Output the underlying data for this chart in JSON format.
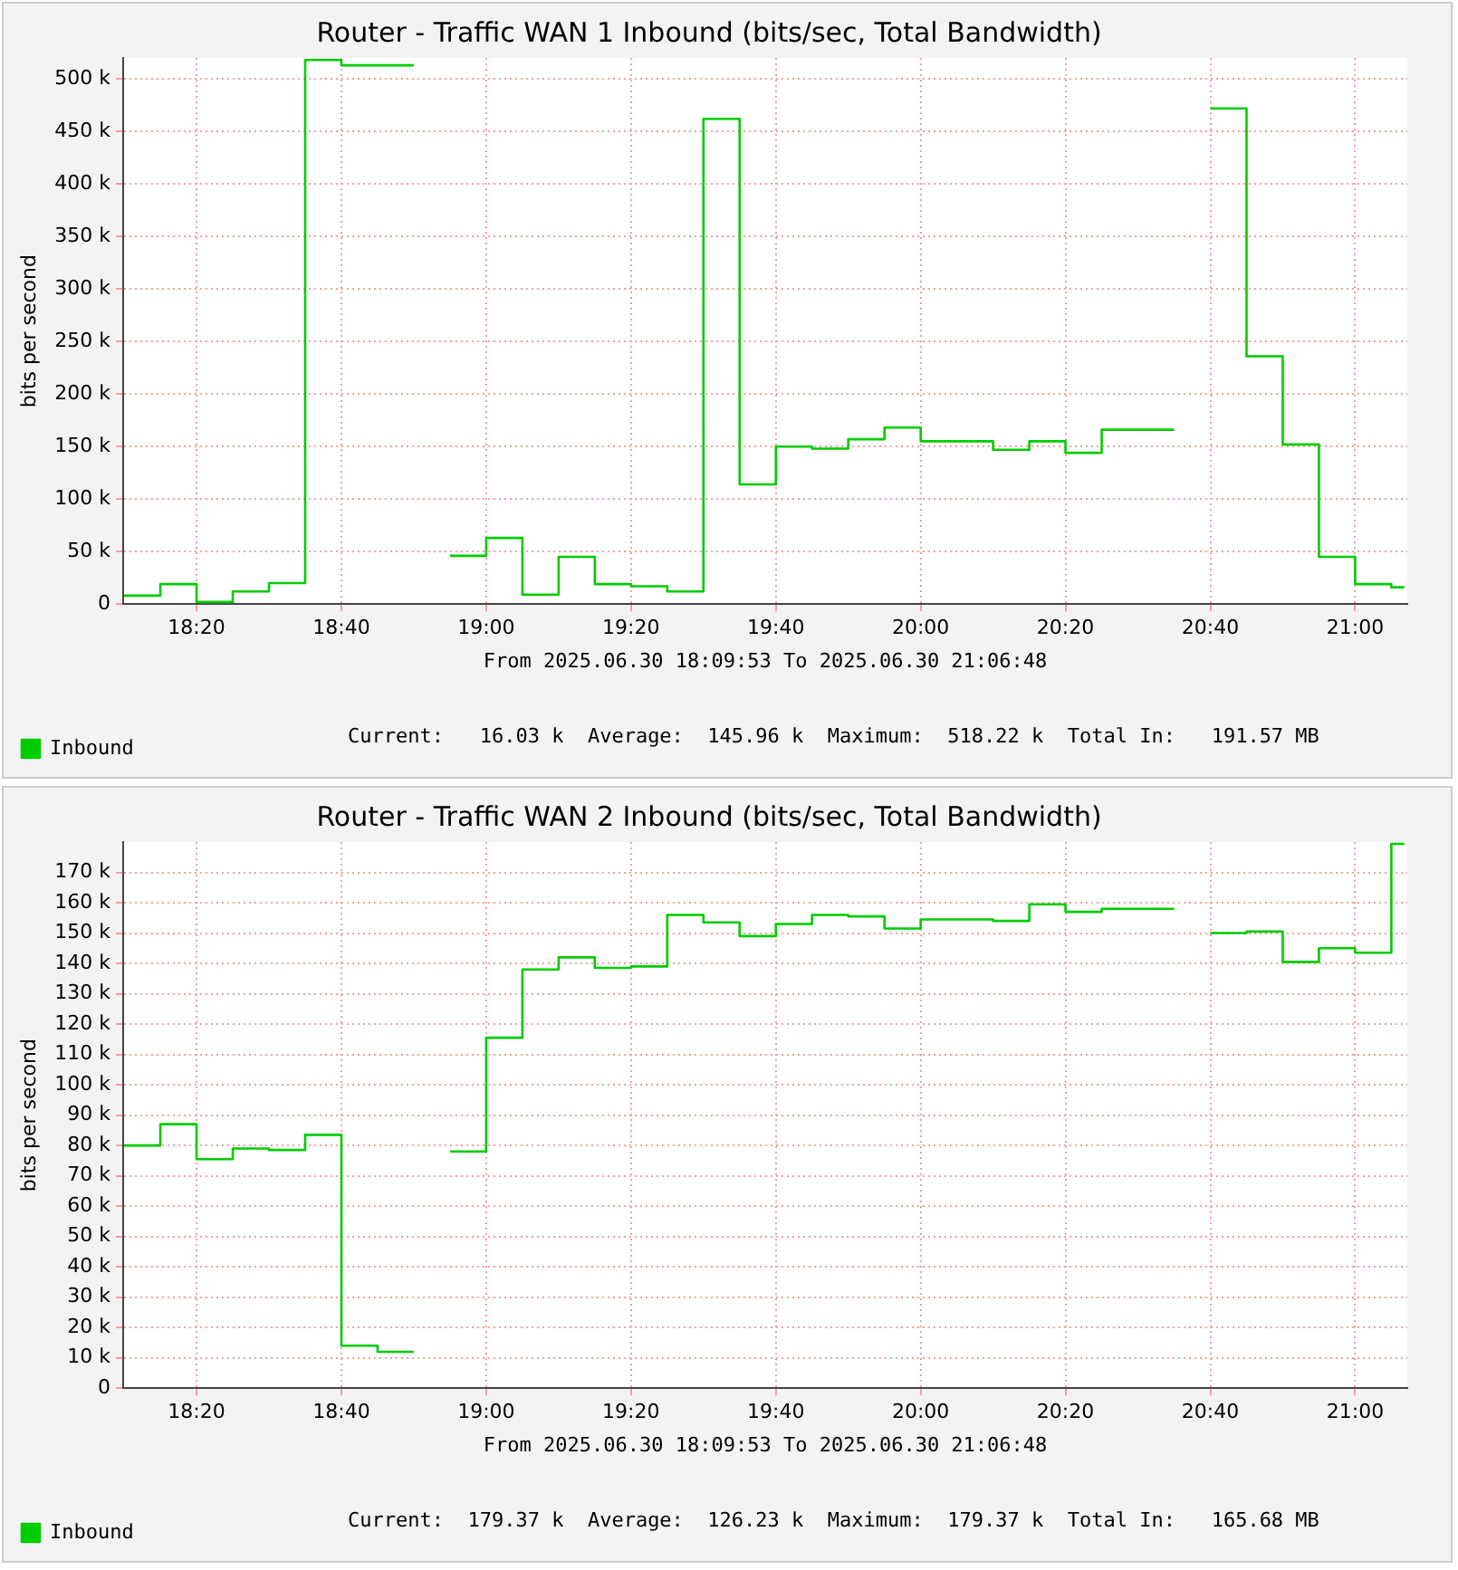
{
  "chart_data": [
    {
      "type": "step",
      "title": "Router - Traffic WAN 1 Inbound (bits/sec, Total Bandwidth)",
      "xlabel": "From 2025.06.30 18:09:53 To 2025.06.30 21:06:48",
      "ylabel": "bits per second",
      "x": [
        18.1667,
        18.25,
        18.3333,
        18.4167,
        18.5,
        18.5833,
        18.6667,
        18.75,
        18.8333,
        18.875,
        18.9167,
        19.0,
        19.0833,
        19.1667,
        19.25,
        19.3333,
        19.4167,
        19.5,
        19.5833,
        19.6667,
        19.75,
        19.8333,
        19.9167,
        20.0,
        20.0833,
        20.1667,
        20.25,
        20.3333,
        20.4167,
        20.5,
        20.5833,
        20.625,
        20.6667,
        20.75,
        20.8333,
        20.9167,
        21.0,
        21.0833,
        21.1133
      ],
      "series": [
        {
          "name": "Inbound",
          "color": "#00cc00",
          "values": [
            8,
            19,
            2,
            12,
            20,
            518,
            513,
            513,
            513,
            null,
            46,
            63,
            9,
            45,
            19,
            17,
            12,
            462,
            114,
            150,
            148,
            157,
            168,
            155,
            155,
            147,
            155,
            144,
            166,
            166,
            166,
            null,
            472,
            236,
            152,
            45,
            19,
            16,
            16
          ]
        }
      ],
      "xlim": [
        18.1647,
        21.12
      ],
      "xticks": [
        {
          "value": 18.3333,
          "label": "18:20"
        },
        {
          "value": 18.6667,
          "label": "18:40"
        },
        {
          "value": 19.0,
          "label": "19:00"
        },
        {
          "value": 19.3333,
          "label": "19:20"
        },
        {
          "value": 19.6667,
          "label": "19:40"
        },
        {
          "value": 20.0,
          "label": "20:00"
        },
        {
          "value": 20.3333,
          "label": "20:20"
        },
        {
          "value": 20.6667,
          "label": "20:40"
        },
        {
          "value": 21.0,
          "label": "21:00"
        }
      ],
      "ylim": [
        0,
        520
      ],
      "yticks": [
        0,
        {
          "value": 50,
          "label": "50 k"
        },
        {
          "value": 100,
          "label": "100 k"
        },
        {
          "value": 150,
          "label": "150 k"
        },
        {
          "value": 200,
          "label": "200 k"
        },
        {
          "value": 250,
          "label": "250 k"
        },
        {
          "value": 300,
          "label": "300 k"
        },
        {
          "value": 350,
          "label": "350 k"
        },
        {
          "value": 400,
          "label": "400 k"
        },
        {
          "value": 450,
          "label": "450 k"
        },
        {
          "value": 500,
          "label": "500 k"
        }
      ],
      "grid": true,
      "legend": "bottom left",
      "marker": "none",
      "annotations": [
        "Current:   16.03 k  Average:  145.96 k  Maximum:  518.22 k  Total In:   191.57 MB"
      ]
    },
    {
      "type": "step",
      "title": "Router - Traffic WAN 2 Inbound (bits/sec, Total Bandwidth)",
      "xlabel": "From 2025.06.30 18:09:53 To 2025.06.30 21:06:48",
      "ylabel": "bits per second",
      "x": [
        18.1667,
        18.25,
        18.3333,
        18.4167,
        18.5,
        18.5833,
        18.6667,
        18.75,
        18.8333,
        18.875,
        18.9167,
        19.0,
        19.0833,
        19.1667,
        19.25,
        19.3333,
        19.4167,
        19.5,
        19.5833,
        19.6667,
        19.75,
        19.8333,
        19.9167,
        20.0,
        20.0833,
        20.1667,
        20.25,
        20.3333,
        20.4167,
        20.5,
        20.5833,
        20.625,
        20.6667,
        20.75,
        20.8333,
        20.9167,
        21.0,
        21.0833,
        21.1133
      ],
      "series": [
        {
          "name": "Inbound",
          "color": "#00cc00",
          "values": [
            80,
            87,
            75.5,
            79,
            78.5,
            83.5,
            14,
            12,
            12,
            null,
            78,
            115.5,
            138,
            142,
            138.5,
            139,
            156,
            153.5,
            149,
            153,
            156,
            155.5,
            151.5,
            154.5,
            154.5,
            154,
            159.5,
            157,
            158,
            158,
            158,
            null,
            150,
            150.5,
            140.5,
            145,
            143.5,
            179.4,
            179.4
          ]
        }
      ],
      "xlim": [
        18.1647,
        21.12
      ],
      "xticks": [
        {
          "value": 18.3333,
          "label": "18:20"
        },
        {
          "value": 18.6667,
          "label": "18:40"
        },
        {
          "value": 19.0,
          "label": "19:00"
        },
        {
          "value": 19.3333,
          "label": "19:20"
        },
        {
          "value": 19.6667,
          "label": "19:40"
        },
        {
          "value": 20.0,
          "label": "20:00"
        },
        {
          "value": 20.3333,
          "label": "20:20"
        },
        {
          "value": 20.6667,
          "label": "20:40"
        },
        {
          "value": 21.0,
          "label": "21:00"
        }
      ],
      "ylim": [
        0,
        180
      ],
      "yticks": [
        0,
        {
          "value": 10,
          "label": "10 k"
        },
        {
          "value": 20,
          "label": "20 k"
        },
        {
          "value": 30,
          "label": "30 k"
        },
        {
          "value": 40,
          "label": "40 k"
        },
        {
          "value": 50,
          "label": "50 k"
        },
        {
          "value": 60,
          "label": "60 k"
        },
        {
          "value": 70,
          "label": "70 k"
        },
        {
          "value": 80,
          "label": "80 k"
        },
        {
          "value": 90,
          "label": "90 k"
        },
        {
          "value": 100,
          "label": "100 k"
        },
        {
          "value": 110,
          "label": "110 k"
        },
        {
          "value": 120,
          "label": "120 k"
        },
        {
          "value": 130,
          "label": "130 k"
        },
        {
          "value": 140,
          "label": "140 k"
        },
        {
          "value": 150,
          "label": "150 k"
        },
        {
          "value": 160,
          "label": "160 k"
        },
        {
          "value": 170,
          "label": "170 k"
        }
      ],
      "grid": true,
      "legend": "bottom left",
      "marker": "none",
      "annotations": [
        "Current:  179.37 k  Average:  126.23 k  Maximum:  179.37 k  Total In:   165.68 MB"
      ]
    }
  ]
}
